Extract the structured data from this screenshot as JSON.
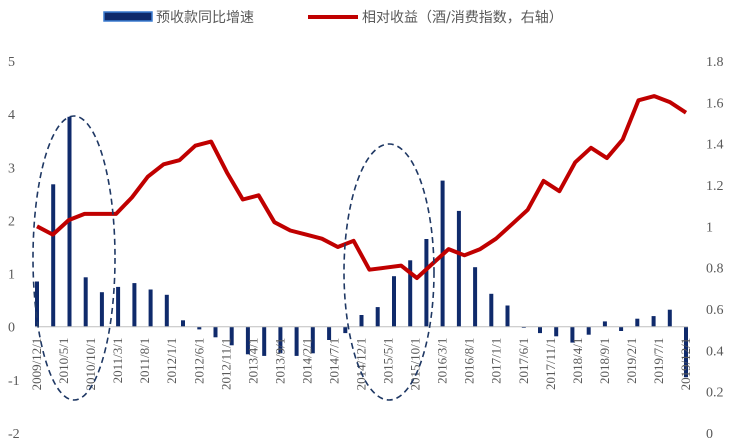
{
  "chart_data": {
    "type": "bar+line",
    "title": "",
    "legend": [
      {
        "name": "预收款同比增速",
        "kind": "bar",
        "color": "#0f2a6b"
      },
      {
        "name": "相对收益（酒/消费指数，右轴）",
        "kind": "line",
        "color": "#c00000"
      }
    ],
    "left_axis": {
      "ylim": [
        -2,
        5
      ],
      "ticks": [
        "-2",
        "-1",
        "0",
        "1",
        "2",
        "3",
        "4",
        "5"
      ]
    },
    "right_axis": {
      "ylim": [
        0,
        1.8
      ],
      "ticks": [
        "0",
        "0.2",
        "0.4",
        "0.6",
        "0.8",
        "1",
        "1.2",
        "1.4",
        "1.6",
        "1.8"
      ]
    },
    "x_tick_labels": [
      "2009/12/1",
      "2010/5/1",
      "2010/10/1",
      "2011/3/1",
      "2011/8/1",
      "2012/1/1",
      "2012/6/1",
      "2012/11/1",
      "2013/4/1",
      "2013/9/1",
      "2014/2/1",
      "2014/7/1",
      "2014/12/1",
      "2015/5/1",
      "2015/10/1",
      "2016/3/1",
      "2016/8/1",
      "2017/1/1",
      "2017/6/1",
      "2017/11/1",
      "2018/4/1",
      "2018/9/1",
      "2019/2/1",
      "2019/7/1",
      "2019/12/1"
    ],
    "bar_color": "#0f2a6b",
    "bar_outline_color": "#3b7cd1",
    "line_color": "#c00000",
    "ellipse_color": "#1f3864",
    "series": [
      {
        "name": "预收款同比增速",
        "axis": "left",
        "values": [
          0.85,
          2.68,
          3.95,
          0.93,
          0.65,
          0.75,
          0.82,
          0.7,
          0.6,
          0.12,
          -0.05,
          -0.2,
          -0.35,
          -0.52,
          -0.55,
          -0.5,
          -0.55,
          -0.5,
          -0.25,
          -0.12,
          0.22,
          0.37,
          0.95,
          1.25,
          1.65,
          2.75,
          2.18,
          1.12,
          0.62,
          0.4,
          -0.02,
          -0.12,
          -0.18,
          -0.3,
          -0.15,
          0.1,
          -0.08,
          0.15,
          0.2,
          0.32,
          -0.95
        ]
      },
      {
        "name": "相对收益（酒/消费指数，右轴）",
        "axis": "right",
        "values": [
          1.0,
          0.96,
          1.03,
          1.06,
          1.06,
          1.06,
          1.14,
          1.24,
          1.3,
          1.32,
          1.39,
          1.41,
          1.26,
          1.13,
          1.15,
          1.02,
          0.98,
          0.96,
          0.94,
          0.9,
          0.93,
          0.79,
          0.8,
          0.81,
          0.75,
          0.82,
          0.89,
          0.86,
          0.89,
          0.94,
          1.01,
          1.08,
          1.22,
          1.17,
          1.31,
          1.38,
          1.33,
          1.42,
          1.61,
          1.63,
          1.6,
          1.55
        ]
      }
    ],
    "annotations": [
      {
        "kind": "dashed-ellipse",
        "around": "2010"
      },
      {
        "kind": "dashed-ellipse",
        "around": "2015"
      }
    ]
  }
}
